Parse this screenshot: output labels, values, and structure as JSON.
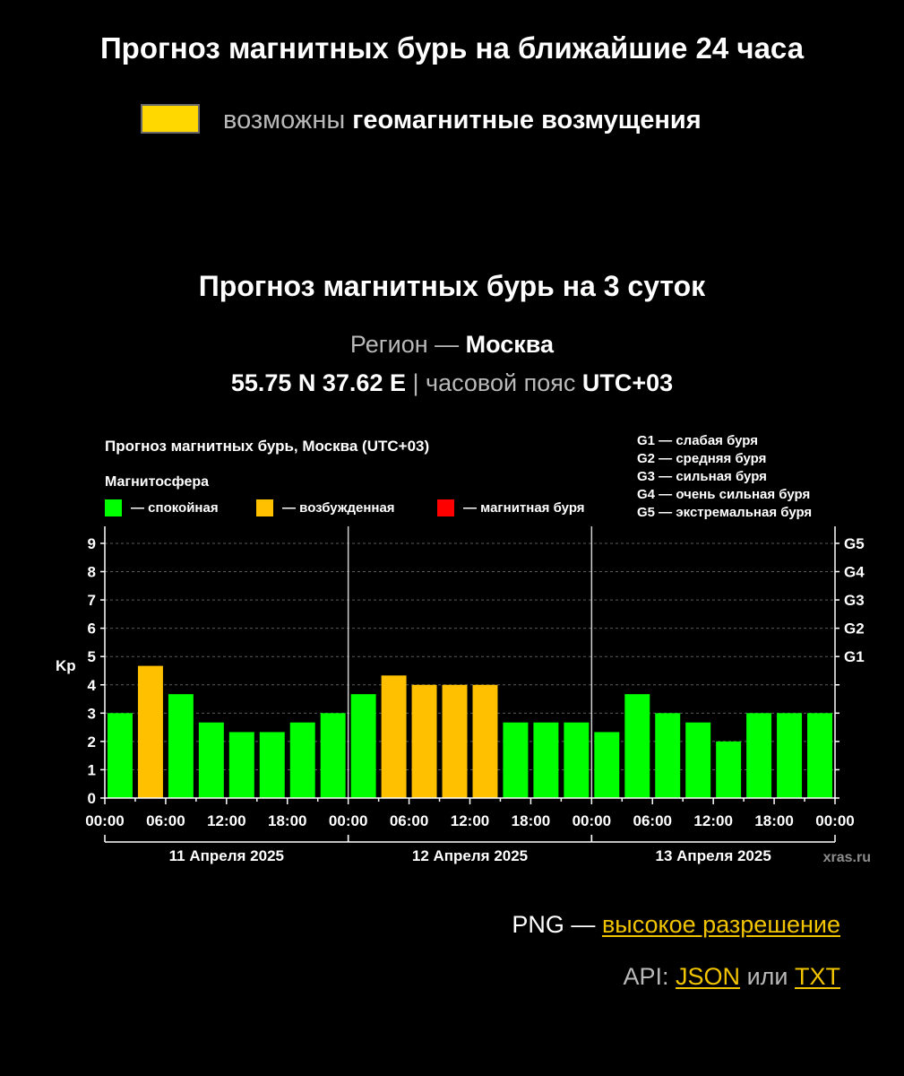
{
  "header": {
    "title": "Прогноз магнитных бурь на ближайшие 24 часа"
  },
  "status": {
    "prefix": "возможны",
    "text": "геомагнитные возмущения",
    "swatch_color": "#ffd800"
  },
  "forecast": {
    "title": "Прогноз магнитных бурь на 3 суток",
    "region_label": "Регион —",
    "region_value": "Москва",
    "coords": "55.75 N 37.62 E",
    "separator": "|",
    "tz_label": "часовой пояс",
    "tz_value": "UTC+03"
  },
  "chart_data": {
    "type": "bar",
    "title": "Прогноз магнитных бурь, Москва (UTC+03)",
    "legend": {
      "title": "Магнитосфера",
      "items": [
        {
          "label": "— спокойная",
          "color": "#00ff00"
        },
        {
          "label": "— возбужденная",
          "color": "#ffc000"
        },
        {
          "label": "— магнитная буря",
          "color": "#ff0000"
        }
      ]
    },
    "g_scale": [
      "G1 — слабая буря",
      "G2 — средняя буря",
      "G3 — сильная буря",
      "G4 — очень сильная буря",
      "G5 — экстремальная буря"
    ],
    "ylabel": "Kp",
    "ylim": [
      0,
      9.6
    ],
    "yticks": [
      "0",
      "1",
      "2",
      "3",
      "4",
      "5",
      "6",
      "7",
      "8",
      "9"
    ],
    "right_ticks": [
      {
        "value": 5,
        "label": "G1"
      },
      {
        "value": 6,
        "label": "G2"
      },
      {
        "value": 7,
        "label": "G3"
      },
      {
        "value": 8,
        "label": "G4"
      },
      {
        "value": 9,
        "label": "G5"
      }
    ],
    "xtick_labels": [
      "00:00",
      "06:00",
      "12:00",
      "18:00",
      "00:00",
      "06:00",
      "12:00",
      "18:00",
      "00:00",
      "06:00",
      "12:00",
      "18:00",
      "00:00"
    ],
    "days": [
      "11 Апреля 2025",
      "12 Апреля 2025",
      "13 Апреля 2025"
    ],
    "interval_hours": 3,
    "values": [
      3.0,
      4.67,
      3.67,
      2.67,
      2.33,
      2.33,
      2.67,
      3.0,
      3.67,
      4.33,
      4.0,
      4.0,
      4.0,
      2.67,
      2.67,
      2.67,
      2.33,
      3.67,
      3.0,
      2.67,
      2.0,
      3.0,
      3.0,
      3.0
    ],
    "colors": [
      "#00ff00",
      "#ffc000",
      "#00ff00",
      "#00ff00",
      "#00ff00",
      "#00ff00",
      "#00ff00",
      "#00ff00",
      "#00ff00",
      "#ffc000",
      "#ffc000",
      "#ffc000",
      "#ffc000",
      "#00ff00",
      "#00ff00",
      "#00ff00",
      "#00ff00",
      "#00ff00",
      "#00ff00",
      "#00ff00",
      "#00ff00",
      "#00ff00",
      "#00ff00",
      "#00ff00"
    ],
    "grid": true,
    "watermark": "xras.ru"
  },
  "links": {
    "png_prefix": "PNG —",
    "png_link": "высокое разрешение",
    "api_prefix": "API:",
    "json_link": "JSON",
    "or": "или",
    "txt_link": "TXT"
  }
}
